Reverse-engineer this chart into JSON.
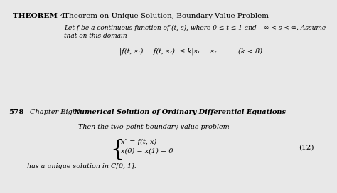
{
  "bg_color": "#e8e8e8",
  "top_bg": "#ffffff",
  "bottom_bg": "#ffffff",
  "divider_color": "#c8c8c8",
  "theorem_label": "THEOREM 4",
  "theorem_title": "Theorem on Unique Solution, Boundary-Value Problem",
  "theorem_line1": "Let f be a continuous function of (t, s), where 0 ≤ t ≤ 1 and −∞ < s < ∞. Assume",
  "theorem_line2": "that on this domain",
  "theorem_formula": "|f(t, s₁) − f(t, s₂)| ≤ k|s₁ − s₂|",
  "theorem_formula_cond": "(k < 8)",
  "page_num": "578",
  "chapter_label": "Chapter Eight",
  "chapter_title": "Numerical Solution of Ordinary Differential Equations",
  "intro_text": "Then the two-point boundary-value problem",
  "eq_line1": "x″ = f(t, x)",
  "eq_line2": "x(0) = x(1) = 0",
  "eq_number": "(12)",
  "conclusion": "has a unique solution in C[0, 1]."
}
